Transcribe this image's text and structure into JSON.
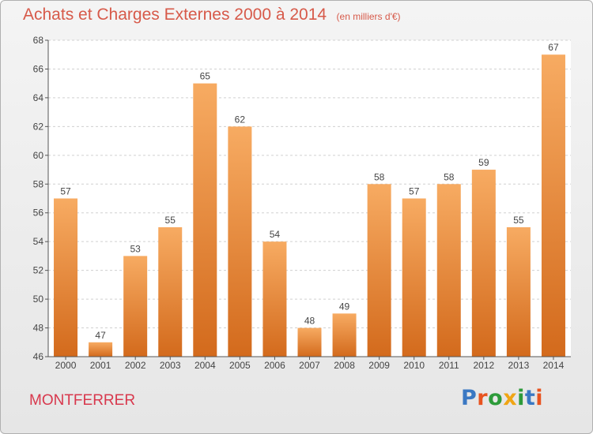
{
  "header": {
    "title": "Achats et Charges Externes 2000 à 2014",
    "subtitle": "(en milliers d'€)"
  },
  "footer": {
    "commune": "MONTFERRER",
    "logo_text": "Proxiti"
  },
  "colors": {
    "title": "#d75a4a",
    "bar_light": "#f6a55a",
    "bar_dark": "#d86e1e",
    "commune": "#d8384d"
  },
  "chart_data": {
    "type": "bar",
    "categories": [
      "2000",
      "2001",
      "2002",
      "2003",
      "2004",
      "2005",
      "2006",
      "2007",
      "2008",
      "2009",
      "2010",
      "2011",
      "2012",
      "2013",
      "2014"
    ],
    "values": [
      57,
      47,
      53,
      55,
      65,
      62,
      54,
      48,
      49,
      58,
      57,
      58,
      59,
      55,
      67
    ],
    "ylim": [
      46,
      68
    ],
    "yticks": [
      46,
      48,
      50,
      52,
      54,
      56,
      58,
      60,
      62,
      64,
      66,
      68
    ],
    "grid": true,
    "legend": "none"
  }
}
